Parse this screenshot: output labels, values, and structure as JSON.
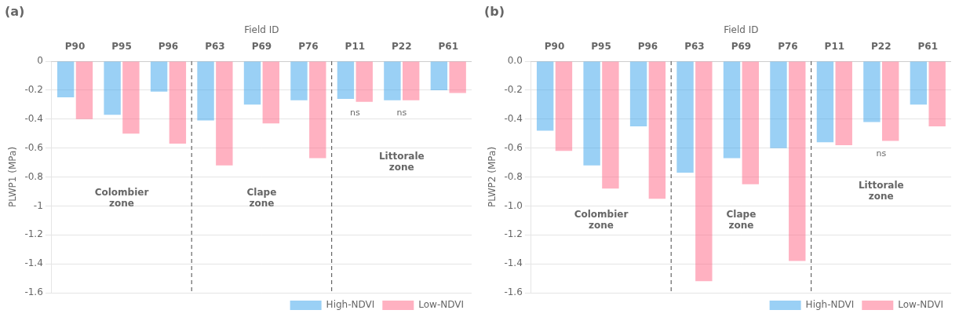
{
  "chart_data": [
    {
      "type": "bar",
      "panel_label": "(a)",
      "title": "Field ID",
      "y_label": "PLWP1 (MPa)",
      "categories": [
        "P90",
        "P95",
        "P96",
        "P63",
        "P69",
        "P76",
        "P11",
        "P22",
        "P61"
      ],
      "series": [
        {
          "name": "High-NDVI",
          "values": [
            -0.25,
            -0.37,
            -0.21,
            -0.41,
            -0.3,
            -0.27,
            -0.26,
            -0.27,
            -0.2
          ]
        },
        {
          "name": "Low-NDVI",
          "values": [
            -0.4,
            -0.5,
            -0.57,
            -0.72,
            -0.43,
            -0.67,
            -0.28,
            -0.27,
            -0.22
          ]
        }
      ],
      "ylim": [
        -1.6,
        0.0
      ],
      "yticks": [
        0,
        -0.2,
        -0.4,
        -0.6,
        -0.8,
        -1,
        -1.2,
        -1.4,
        -1.6
      ],
      "grid": true,
      "legend": "lower right",
      "annotations": [
        {
          "text": "ns",
          "category": "P11",
          "y": -0.32
        },
        {
          "text": "ns",
          "category": "P22",
          "y": -0.32
        }
      ],
      "zones": [
        {
          "text": "Colombier\nzone",
          "categories": [
            "P90",
            "P95",
            "P96"
          ],
          "y": -0.95
        },
        {
          "text": "Clape\nzone",
          "categories": [
            "P63",
            "P69",
            "P76"
          ],
          "y": -0.95
        },
        {
          "text": "Littorale\nzone",
          "categories": [
            "P11",
            "P22",
            "P61"
          ],
          "y": -0.7
        }
      ]
    },
    {
      "type": "bar",
      "panel_label": "(b)",
      "title": "Field ID",
      "y_label": "PLWP2 (MPa)",
      "categories": [
        "P90",
        "P95",
        "P96",
        "P63",
        "P69",
        "P76",
        "P11",
        "P22",
        "P61"
      ],
      "series": [
        {
          "name": "High-NDVI",
          "values": [
            -0.48,
            -0.72,
            -0.45,
            -0.77,
            -0.67,
            -0.6,
            -0.56,
            -0.42,
            -0.3
          ]
        },
        {
          "name": "Low-NDVI",
          "values": [
            -0.62,
            -0.88,
            -0.95,
            -1.52,
            -0.85,
            -1.38,
            -0.58,
            -0.55,
            -0.45
          ]
        }
      ],
      "ylim": [
        -1.6,
        0.0
      ],
      "yticks": [
        {
          "value": 0.0,
          "label": "0.0"
        },
        -0.2,
        -0.4,
        -0.6,
        -0.8,
        {
          "value": -1.0,
          "label": "-1.0"
        },
        -1.2,
        -1.4,
        -1.6
      ],
      "grid": true,
      "legend": "lower right",
      "annotations": [
        {
          "text": "ns",
          "category": "P22",
          "y": -0.6
        }
      ],
      "zones": [
        {
          "text": "Colombier\nzone",
          "categories": [
            "P90",
            "P95",
            "P96"
          ],
          "y": -1.1
        },
        {
          "text": "Clape\nzone",
          "categories": [
            "P63",
            "P69",
            "P76"
          ],
          "y": -1.1
        },
        {
          "text": "Littorale\nzone",
          "categories": [
            "P11",
            "P22",
            "P61"
          ],
          "y": -0.9
        }
      ]
    }
  ]
}
